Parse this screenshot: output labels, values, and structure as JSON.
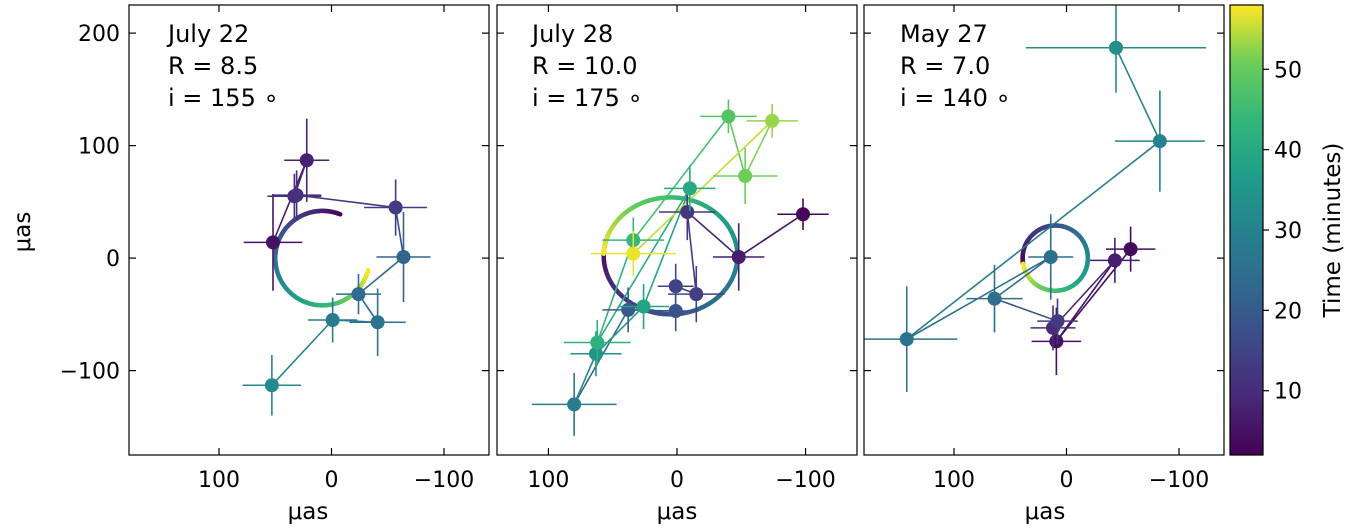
{
  "chart_data": {
    "type": "scatter",
    "colorbar": {
      "label": "Time (minutes)",
      "range": [
        2,
        58
      ],
      "ticks": [
        10,
        20,
        30,
        40,
        50
      ],
      "colormap": "viridis"
    },
    "panels": [
      {
        "annotation": [
          "July 22",
          "R = 8.5",
          "i = 155 ∘"
        ],
        "xlabel": "μas",
        "ylabel": "μas",
        "xlim": [
          180,
          -140
        ],
        "ylim": [
          -175,
          225
        ],
        "xticks": [
          100,
          0,
          -100
        ],
        "xtick_labels": [
          "100",
          "0",
          "−100"
        ],
        "yticks": [
          200,
          100,
          0,
          -100
        ],
        "ytick_labels": [
          "200",
          "100",
          "0",
          "−100"
        ],
        "ring": {
          "cx": 8,
          "cy": 0,
          "r": 42,
          "turns": 0.77,
          "start_angle_deg": 112,
          "t_start": 2,
          "t_end": 58,
          "direction": -1
        },
        "points": [
          {
            "x": 52,
            "y": 14,
            "t": 5,
            "xerr": 26,
            "yerr": 43
          },
          {
            "x": 22,
            "y": 87,
            "t": 8,
            "xerr": 20,
            "yerr": 37
          },
          {
            "x": 33,
            "y": 55,
            "t": 10,
            "xerr": 24,
            "yerr": 20
          },
          {
            "x": 31,
            "y": 56,
            "t": 11,
            "xerr": 22,
            "yerr": 22
          },
          {
            "x": -57,
            "y": 45,
            "t": 13,
            "xerr": 28,
            "yerr": 25
          },
          {
            "x": -64,
            "y": 1,
            "t": 22,
            "xerr": 24,
            "yerr": 40
          },
          {
            "x": -24,
            "y": -32,
            "t": 24,
            "xerr": 20,
            "yerr": 18
          },
          {
            "x": -41,
            "y": -57,
            "t": 26,
            "xerr": 25,
            "yerr": 30
          },
          {
            "x": -1,
            "y": -55,
            "t": 28,
            "xerr": 22,
            "yerr": 20
          },
          {
            "x": 53,
            "y": -113,
            "t": 32,
            "xerr": 26,
            "yerr": 27
          }
        ]
      },
      {
        "annotation": [
          "July 28",
          "R = 10.0",
          "i = 175 ∘"
        ],
        "xlabel": "μas",
        "ylabel": "",
        "xlim": [
          140,
          -140
        ],
        "ylim": [
          -175,
          225
        ],
        "xticks": [
          100,
          0,
          -100
        ],
        "xtick_labels": [
          "100",
          "0",
          "−100"
        ],
        "yticks": [
          200,
          100,
          0,
          -100
        ],
        "ytick_labels": [],
        "ring": {
          "cx": 5,
          "cy": 2,
          "r": 52,
          "turns": 1.05,
          "start_angle_deg": 20,
          "t_start": 2,
          "t_end": 58,
          "direction": -1
        },
        "points": [
          {
            "x": -98,
            "y": 39,
            "t": 3,
            "xerr": 20,
            "yerr": 14
          },
          {
            "x": -48,
            "y": 1,
            "t": 7,
            "xerr": 20,
            "yerr": 30
          },
          {
            "x": -8,
            "y": 41,
            "t": 12,
            "xerr": 22,
            "yerr": 25
          },
          {
            "x": -15,
            "y": -32,
            "t": 14,
            "xerr": 22,
            "yerr": 25
          },
          {
            "x": 1,
            "y": -25,
            "t": 15,
            "xerr": 14,
            "yerr": 20
          },
          {
            "x": 1,
            "y": -47,
            "t": 18,
            "xerr": 18,
            "yerr": 18
          },
          {
            "x": 38,
            "y": -46,
            "t": 20,
            "xerr": 20,
            "yerr": 20
          },
          {
            "x": 80,
            "y": -130,
            "t": 28,
            "xerr": 33,
            "yerr": 28
          },
          {
            "x": 63,
            "y": -85,
            "t": 34,
            "xerr": 20,
            "yerr": 20
          },
          {
            "x": 26,
            "y": -43,
            "t": 38,
            "xerr": 20,
            "yerr": 20
          },
          {
            "x": -10,
            "y": 62,
            "t": 40,
            "xerr": 20,
            "yerr": 20
          },
          {
            "x": 62,
            "y": -75,
            "t": 42,
            "xerr": 26,
            "yerr": 20
          },
          {
            "x": 34,
            "y": 16,
            "t": 44,
            "xerr": 24,
            "yerr": 20
          },
          {
            "x": -40,
            "y": 126,
            "t": 48,
            "xerr": 22,
            "yerr": 15
          },
          {
            "x": -53,
            "y": 73,
            "t": 51,
            "xerr": 25,
            "yerr": 25
          },
          {
            "x": -74,
            "y": 122,
            "t": 53,
            "xerr": 20,
            "yerr": 15
          },
          {
            "x": 34,
            "y": 4,
            "t": 57,
            "xerr": 33,
            "yerr": 20
          }
        ]
      },
      {
        "annotation": [
          "May 27",
          "R = 7.0",
          "i = 140 ∘"
        ],
        "xlabel": "μas",
        "ylabel": "",
        "xlim": [
          180,
          -140
        ],
        "ylim": [
          -175,
          225
        ],
        "xticks": [
          100,
          0,
          -100
        ],
        "xtick_labels": [
          "100",
          "0",
          "−100"
        ],
        "yticks": [
          200,
          100,
          0,
          -100
        ],
        "ytick_labels": [],
        "ring": {
          "cx": 10,
          "cy": 0,
          "r": 29,
          "turns": 1.0,
          "start_angle_deg": -10,
          "t_start": 2,
          "t_end": 58,
          "direction": 1
        },
        "points": [
          {
            "x": -57,
            "y": 8,
            "t": 4,
            "xerr": 22,
            "yerr": 20
          },
          {
            "x": 9,
            "y": -74,
            "t": 5,
            "xerr": 22,
            "yerr": 30
          },
          {
            "x": -43,
            "y": -2,
            "t": 7,
            "xerr": 22,
            "yerr": 20
          },
          {
            "x": 12,
            "y": -62,
            "t": 10,
            "xerr": 20,
            "yerr": 20
          },
          {
            "x": 8,
            "y": -56,
            "t": 13,
            "xerr": 18,
            "yerr": 20
          },
          {
            "x": 64,
            "y": -36,
            "t": 25,
            "xerr": 25,
            "yerr": 30
          },
          {
            "x": 14,
            "y": 1,
            "t": 25,
            "xerr": 20,
            "yerr": 38
          },
          {
            "x": 142,
            "y": -72,
            "t": 26,
            "xerr": 45,
            "yerr": 47
          },
          {
            "x": -83,
            "y": 104,
            "t": 30,
            "xerr": 40,
            "yerr": 45
          },
          {
            "x": -44,
            "y": 187,
            "t": 33,
            "xerr": 80,
            "yerr": 40
          }
        ]
      }
    ]
  }
}
